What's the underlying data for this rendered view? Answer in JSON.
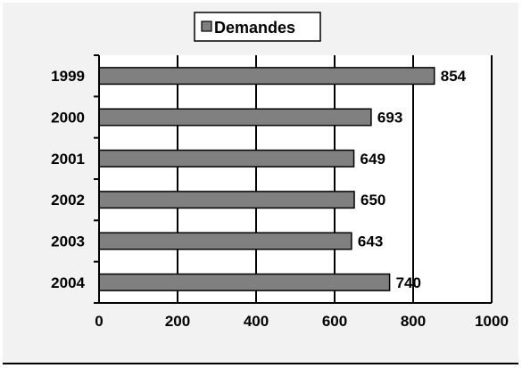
{
  "chart_data": {
    "type": "bar",
    "orientation": "horizontal",
    "categories": [
      "1999",
      "2000",
      "2001",
      "2002",
      "2003",
      "2004"
    ],
    "series": [
      {
        "name": "Demandes",
        "values": [
          854,
          693,
          649,
          650,
          643,
          740
        ]
      }
    ],
    "data_labels": [
      "854",
      "693",
      "649",
      "650",
      "643",
      "740"
    ],
    "x_ticks": [
      "0",
      "200",
      "400",
      "600",
      "800",
      "1000"
    ],
    "xlim": [
      0,
      1000
    ],
    "grid": true,
    "legend_position": "top-center",
    "bar_color": "#808080",
    "background_color": "#f2f2f2"
  }
}
